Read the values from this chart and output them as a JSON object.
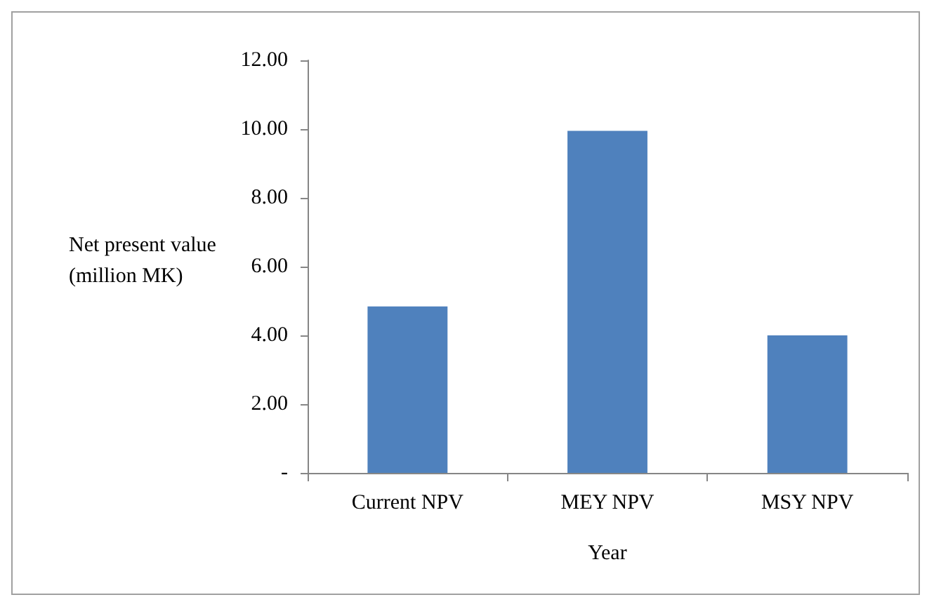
{
  "chart_data": {
    "type": "bar",
    "xlabel": "Year",
    "ylabel": "Net present value (million MK)",
    "categories": [
      "Current NPV",
      "MEY NPV",
      "MSY NPV"
    ],
    "values": [
      4.84,
      9.95,
      4.0
    ],
    "color": "#4f81bd",
    "ylim": [
      0,
      12
    ],
    "yticks": [
      {
        "value": 0,
        "label": "-"
      },
      {
        "value": 2,
        "label": "2.00"
      },
      {
        "value": 4,
        "label": "4.00"
      },
      {
        "value": 6,
        "label": "6.00"
      },
      {
        "value": 8,
        "label": "8.00"
      },
      {
        "value": 10,
        "label": "10.00"
      },
      {
        "value": 12,
        "label": "12.00"
      }
    ],
    "grid": false
  }
}
